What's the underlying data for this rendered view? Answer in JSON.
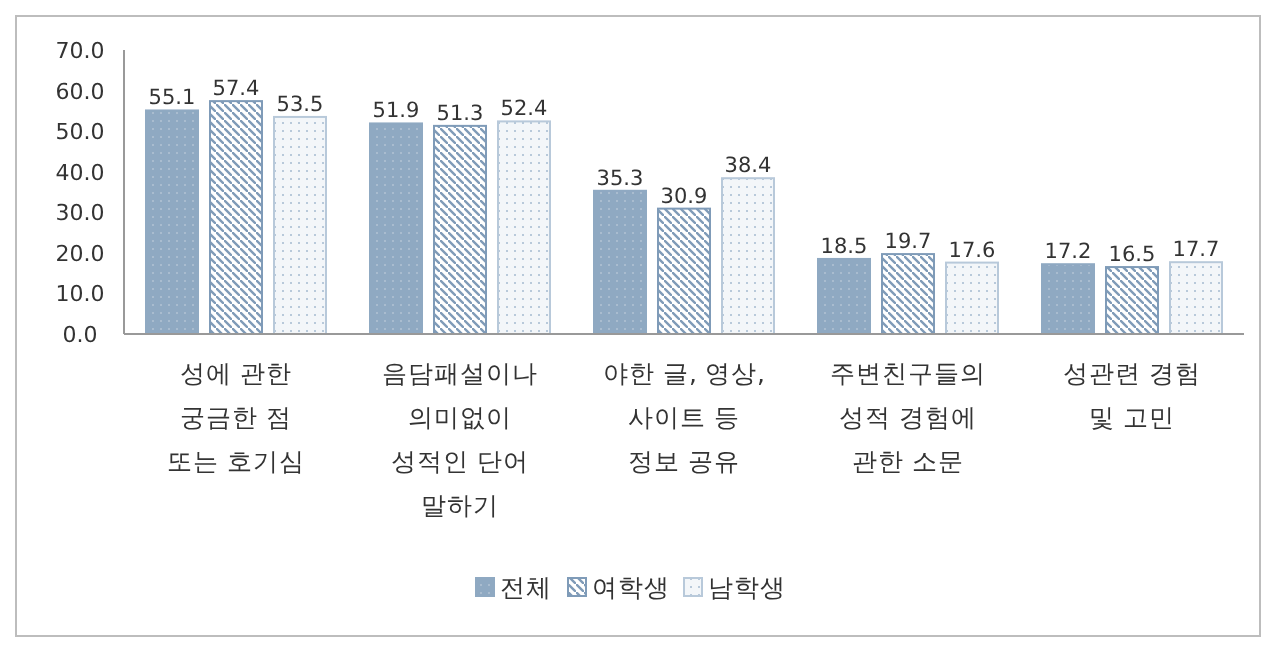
{
  "chart_data": {
    "type": "bar",
    "categories": [
      "성에 관한\n궁금한 점\n또는 호기심",
      "음담패설이나\n의미없이\n성적인 단어\n말하기",
      "야한 글, 영상,\n사이트 등\n정보 공유",
      "주변친구들의\n성적 경험에\n관한 소문",
      "성관련 경험\n및 고민"
    ],
    "series": [
      {
        "name": "전체",
        "color": "#8fa9c2",
        "values": [
          55.1,
          51.9,
          35.3,
          18.5,
          17.2
        ]
      },
      {
        "name": "여학생",
        "color": "#7f9bb8",
        "values": [
          57.4,
          51.3,
          30.9,
          19.7,
          16.5
        ]
      },
      {
        "name": "남학생",
        "color": "#b8c9da",
        "values": [
          53.5,
          52.4,
          38.4,
          17.6,
          17.7
        ]
      }
    ],
    "ylim": [
      0,
      70
    ],
    "yticks": [
      {
        "value": 0,
        "label": "0.0"
      },
      {
        "value": 10,
        "label": "10.0"
      },
      {
        "value": 20,
        "label": "20.0"
      },
      {
        "value": 30,
        "label": "30.0"
      },
      {
        "value": 40,
        "label": "40.0"
      },
      {
        "value": 50,
        "label": "50.0"
      },
      {
        "value": 60,
        "label": "60.0"
      },
      {
        "value": 70,
        "label": "70.0"
      }
    ],
    "data_labels": true,
    "grid": false,
    "legend": "bottom"
  }
}
